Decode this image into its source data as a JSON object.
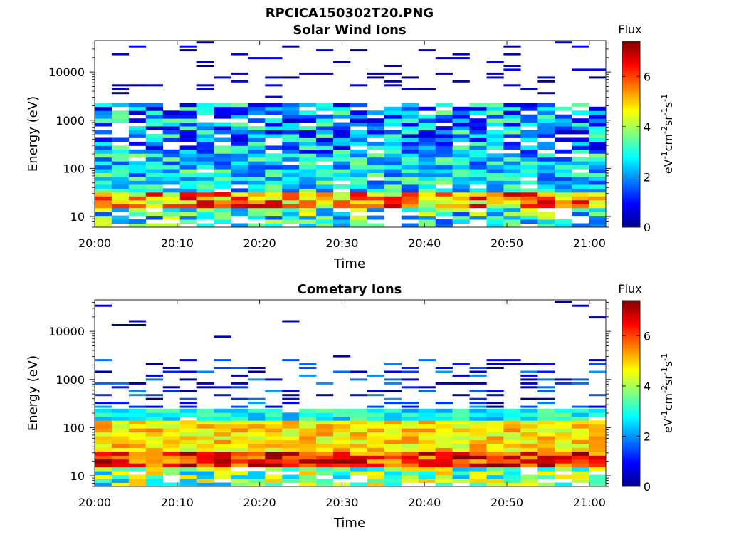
{
  "figure": {
    "title": "RPCICA150302T20.PNG"
  },
  "chart_data": [
    {
      "type": "heatmap",
      "title": "Solar Wind Ions",
      "xlabel": "Time",
      "ylabel": "Energy (eV)",
      "x_ticks": [
        "20:00",
        "20:10",
        "20:20",
        "20:30",
        "20:40",
        "20:50",
        "21:00"
      ],
      "x_range_min": [
        0,
        62
      ],
      "y_scale": "log",
      "y_ticks": [
        10,
        100,
        1000,
        10000
      ],
      "y_tick_labels": [
        "10",
        "100",
        "1000",
        "10000"
      ],
      "y_range": [
        6,
        45000
      ],
      "colorbar": {
        "title": "Flux",
        "label": "eV-1cm-2sr-1s-1",
        "range": [
          0,
          7.4
        ],
        "ticks": [
          0,
          2,
          4,
          6
        ],
        "colormap": "jet"
      },
      "seed": 7,
      "profile": [
        {
          "min": 6,
          "max": 15,
          "value": 3.0,
          "var": 1.6,
          "prob": 0.8
        },
        {
          "min": 15,
          "max": 35,
          "value": 5.4,
          "var": 1.6,
          "prob": 1.0
        },
        {
          "min": 35,
          "max": 220,
          "value": 2.6,
          "var": 1.3,
          "prob": 0.92
        },
        {
          "min": 220,
          "max": 2500,
          "value": 2.1,
          "var": 1.6,
          "prob": 0.8
        },
        {
          "min": 2500,
          "max": 45000,
          "value": 0.4,
          "var": 0.6,
          "prob": 0.14
        }
      ]
    },
    {
      "type": "heatmap",
      "title": "Cometary Ions",
      "xlabel": "Time",
      "ylabel": "Energy (eV)",
      "x_ticks": [
        "20:00",
        "20:10",
        "20:20",
        "20:30",
        "20:40",
        "20:50",
        "21:00"
      ],
      "x_range_min": [
        0,
        62
      ],
      "y_scale": "log",
      "y_ticks": [
        10,
        100,
        1000,
        10000
      ],
      "y_tick_labels": [
        "10",
        "100",
        "1000",
        "10000"
      ],
      "y_range": [
        6,
        45000
      ],
      "colorbar": {
        "title": "Flux",
        "label": "eV-1cm-2sr-1s-1",
        "range": [
          0,
          7.4
        ],
        "ticks": [
          0,
          2,
          4,
          6
        ],
        "colormap": "jet"
      },
      "seed": 19,
      "profile": [
        {
          "min": 6,
          "max": 15,
          "value": 3.6,
          "var": 1.6,
          "prob": 0.85
        },
        {
          "min": 15,
          "max": 35,
          "value": 6.2,
          "var": 1.2,
          "prob": 1.0
        },
        {
          "min": 35,
          "max": 130,
          "value": 4.8,
          "var": 0.8,
          "prob": 1.0
        },
        {
          "min": 130,
          "max": 230,
          "value": 2.8,
          "var": 0.8,
          "prob": 0.95
        },
        {
          "min": 230,
          "max": 3000,
          "value": 1.0,
          "var": 1.1,
          "prob": 0.35
        },
        {
          "min": 3000,
          "max": 45000,
          "value": 0.3,
          "var": 0.3,
          "prob": 0.02
        }
      ]
    }
  ]
}
